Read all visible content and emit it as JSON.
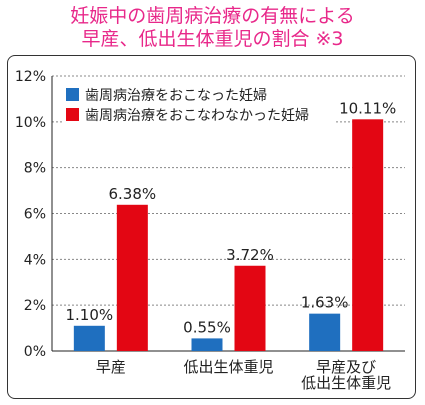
{
  "title_lines": [
    "妊娠中の歯周病治療の有無による",
    "早産、低出生体重児の割合 ※3"
  ],
  "chart_data": {
    "type": "bar",
    "categories": [
      [
        "早産"
      ],
      [
        "低出生体重児"
      ],
      [
        "早産及び",
        "低出生体重児"
      ]
    ],
    "series": [
      {
        "name": "歯周病治療をおこなった妊婦",
        "color": "#1f6fbf",
        "values": [
          1.1,
          0.55,
          1.63
        ],
        "labels": [
          "1.10%",
          "0.55%",
          "1.63%"
        ]
      },
      {
        "name": "歯周病治療をおこなわなかった妊婦",
        "color": "#e30613",
        "values": [
          6.38,
          3.72,
          10.11
        ],
        "labels": [
          "6.38%",
          "3.72%",
          "10.11%"
        ]
      }
    ],
    "ylim": [
      0,
      12
    ],
    "yticks": [
      0,
      2,
      4,
      6,
      8,
      10,
      12
    ],
    "ytick_labels": [
      "0%",
      "2%",
      "4%",
      "6%",
      "8%",
      "10%",
      "12%"
    ],
    "grid": true,
    "legend_position": "top-left"
  }
}
